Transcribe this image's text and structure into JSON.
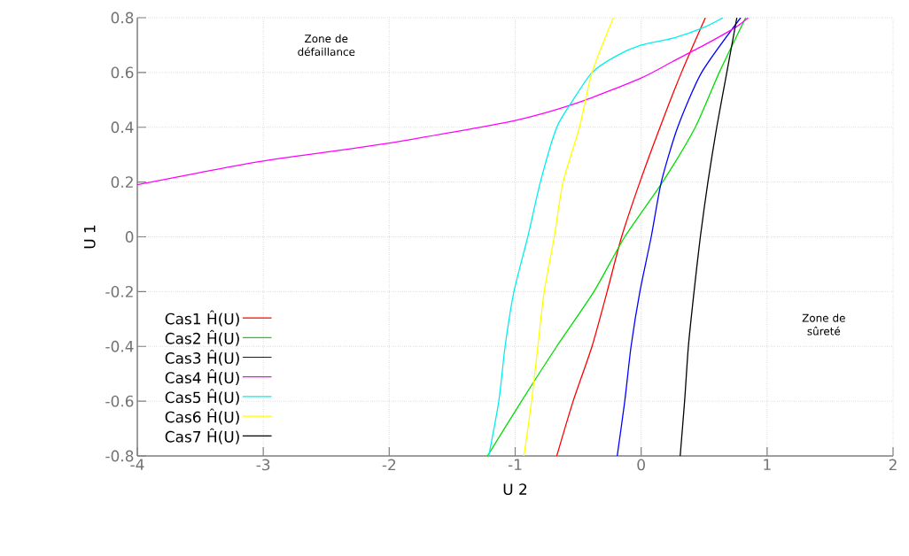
{
  "chart_data": {
    "type": "line",
    "xlabel": "U 2",
    "ylabel": "U 1",
    "xlim": [
      -4,
      2
    ],
    "ylim": [
      -0.8,
      0.8
    ],
    "xticks": [
      -4,
      -3,
      -2,
      -1,
      0,
      1,
      2
    ],
    "yticks": [
      -0.8,
      -0.6,
      -0.4,
      -0.2,
      0,
      0.2,
      0.4,
      0.6,
      0.8
    ],
    "grid": true,
    "legend": "bottom left",
    "marker": "none",
    "line_style": "solid",
    "annotations": [
      "Zone de défaillance",
      "Zone de sûreté"
    ],
    "series": [
      {
        "name": "Cas1 Ĥ(U)",
        "color": "#ff0000",
        "x": [
          -0.67,
          -0.54,
          -0.39,
          -0.27,
          -0.155,
          -0.01,
          0.15,
          0.32,
          0.51
        ],
        "values": [
          -0.8,
          -0.6,
          -0.4,
          -0.2,
          0,
          0.2,
          0.4,
          0.6,
          0.8
        ]
      },
      {
        "name": "Cas2 Ĥ(U)",
        "color": "#00dd00",
        "x": [
          -1.22,
          -0.95,
          -0.67,
          -0.375,
          -0.13,
          0.17,
          0.43,
          0.62,
          0.83
        ],
        "values": [
          -0.8,
          -0.6,
          -0.4,
          -0.2,
          0,
          0.2,
          0.4,
          0.6,
          0.8
        ]
      },
      {
        "name": "Cas3 Ĥ(U)",
        "color": "#0000ff",
        "x": [
          -0.19,
          -0.13,
          -0.08,
          -0.01,
          0.08,
          0.16,
          0.29,
          0.48,
          0.79
        ],
        "values": [
          -0.8,
          -0.6,
          -0.4,
          -0.2,
          0,
          0.2,
          0.4,
          0.6,
          0.8
        ]
      },
      {
        "name": "Cas4 Ĥ(U)",
        "color": "#ff00ff",
        "x": [
          -4,
          -3.5,
          -3,
          -2,
          -1,
          -0.5,
          0,
          0.25,
          0.5,
          0.75,
          0.85
        ],
        "values": [
          0.19,
          0.235,
          0.277,
          0.342,
          0.425,
          0.49,
          0.58,
          0.64,
          0.7,
          0.765,
          0.8
        ]
      },
      {
        "name": "Cas5 Ĥ(U)",
        "color": "#00eeee",
        "x": [
          -1.21,
          -1.13,
          -1.08,
          -1.01,
          -0.9,
          -0.8,
          -0.67,
          -0.54,
          -0.39,
          -0.2,
          0,
          0.25,
          0.5,
          0.65
        ],
        "values": [
          -0.8,
          -0.6,
          -0.4,
          -0.2,
          0,
          0.2,
          0.4,
          0.5,
          0.6,
          0.66,
          0.7,
          0.725,
          0.765,
          0.8
        ]
      },
      {
        "name": "Cas6 Ĥ(U)",
        "color": "#ffff00",
        "x": [
          -0.93,
          -0.87,
          -0.82,
          -0.77,
          -0.69,
          -0.62,
          -0.49,
          -0.39,
          -0.22
        ],
        "values": [
          -0.8,
          -0.6,
          -0.4,
          -0.2,
          0,
          0.2,
          0.4,
          0.6,
          0.8
        ]
      },
      {
        "name": "Cas7 Ĥ(U)",
        "color": "#000000",
        "x": [
          0.31,
          0.345,
          0.375,
          0.42,
          0.47,
          0.53,
          0.6,
          0.68,
          0.76
        ],
        "values": [
          -0.8,
          -0.6,
          -0.4,
          -0.2,
          0,
          0.2,
          0.4,
          0.6,
          0.8
        ]
      }
    ]
  }
}
